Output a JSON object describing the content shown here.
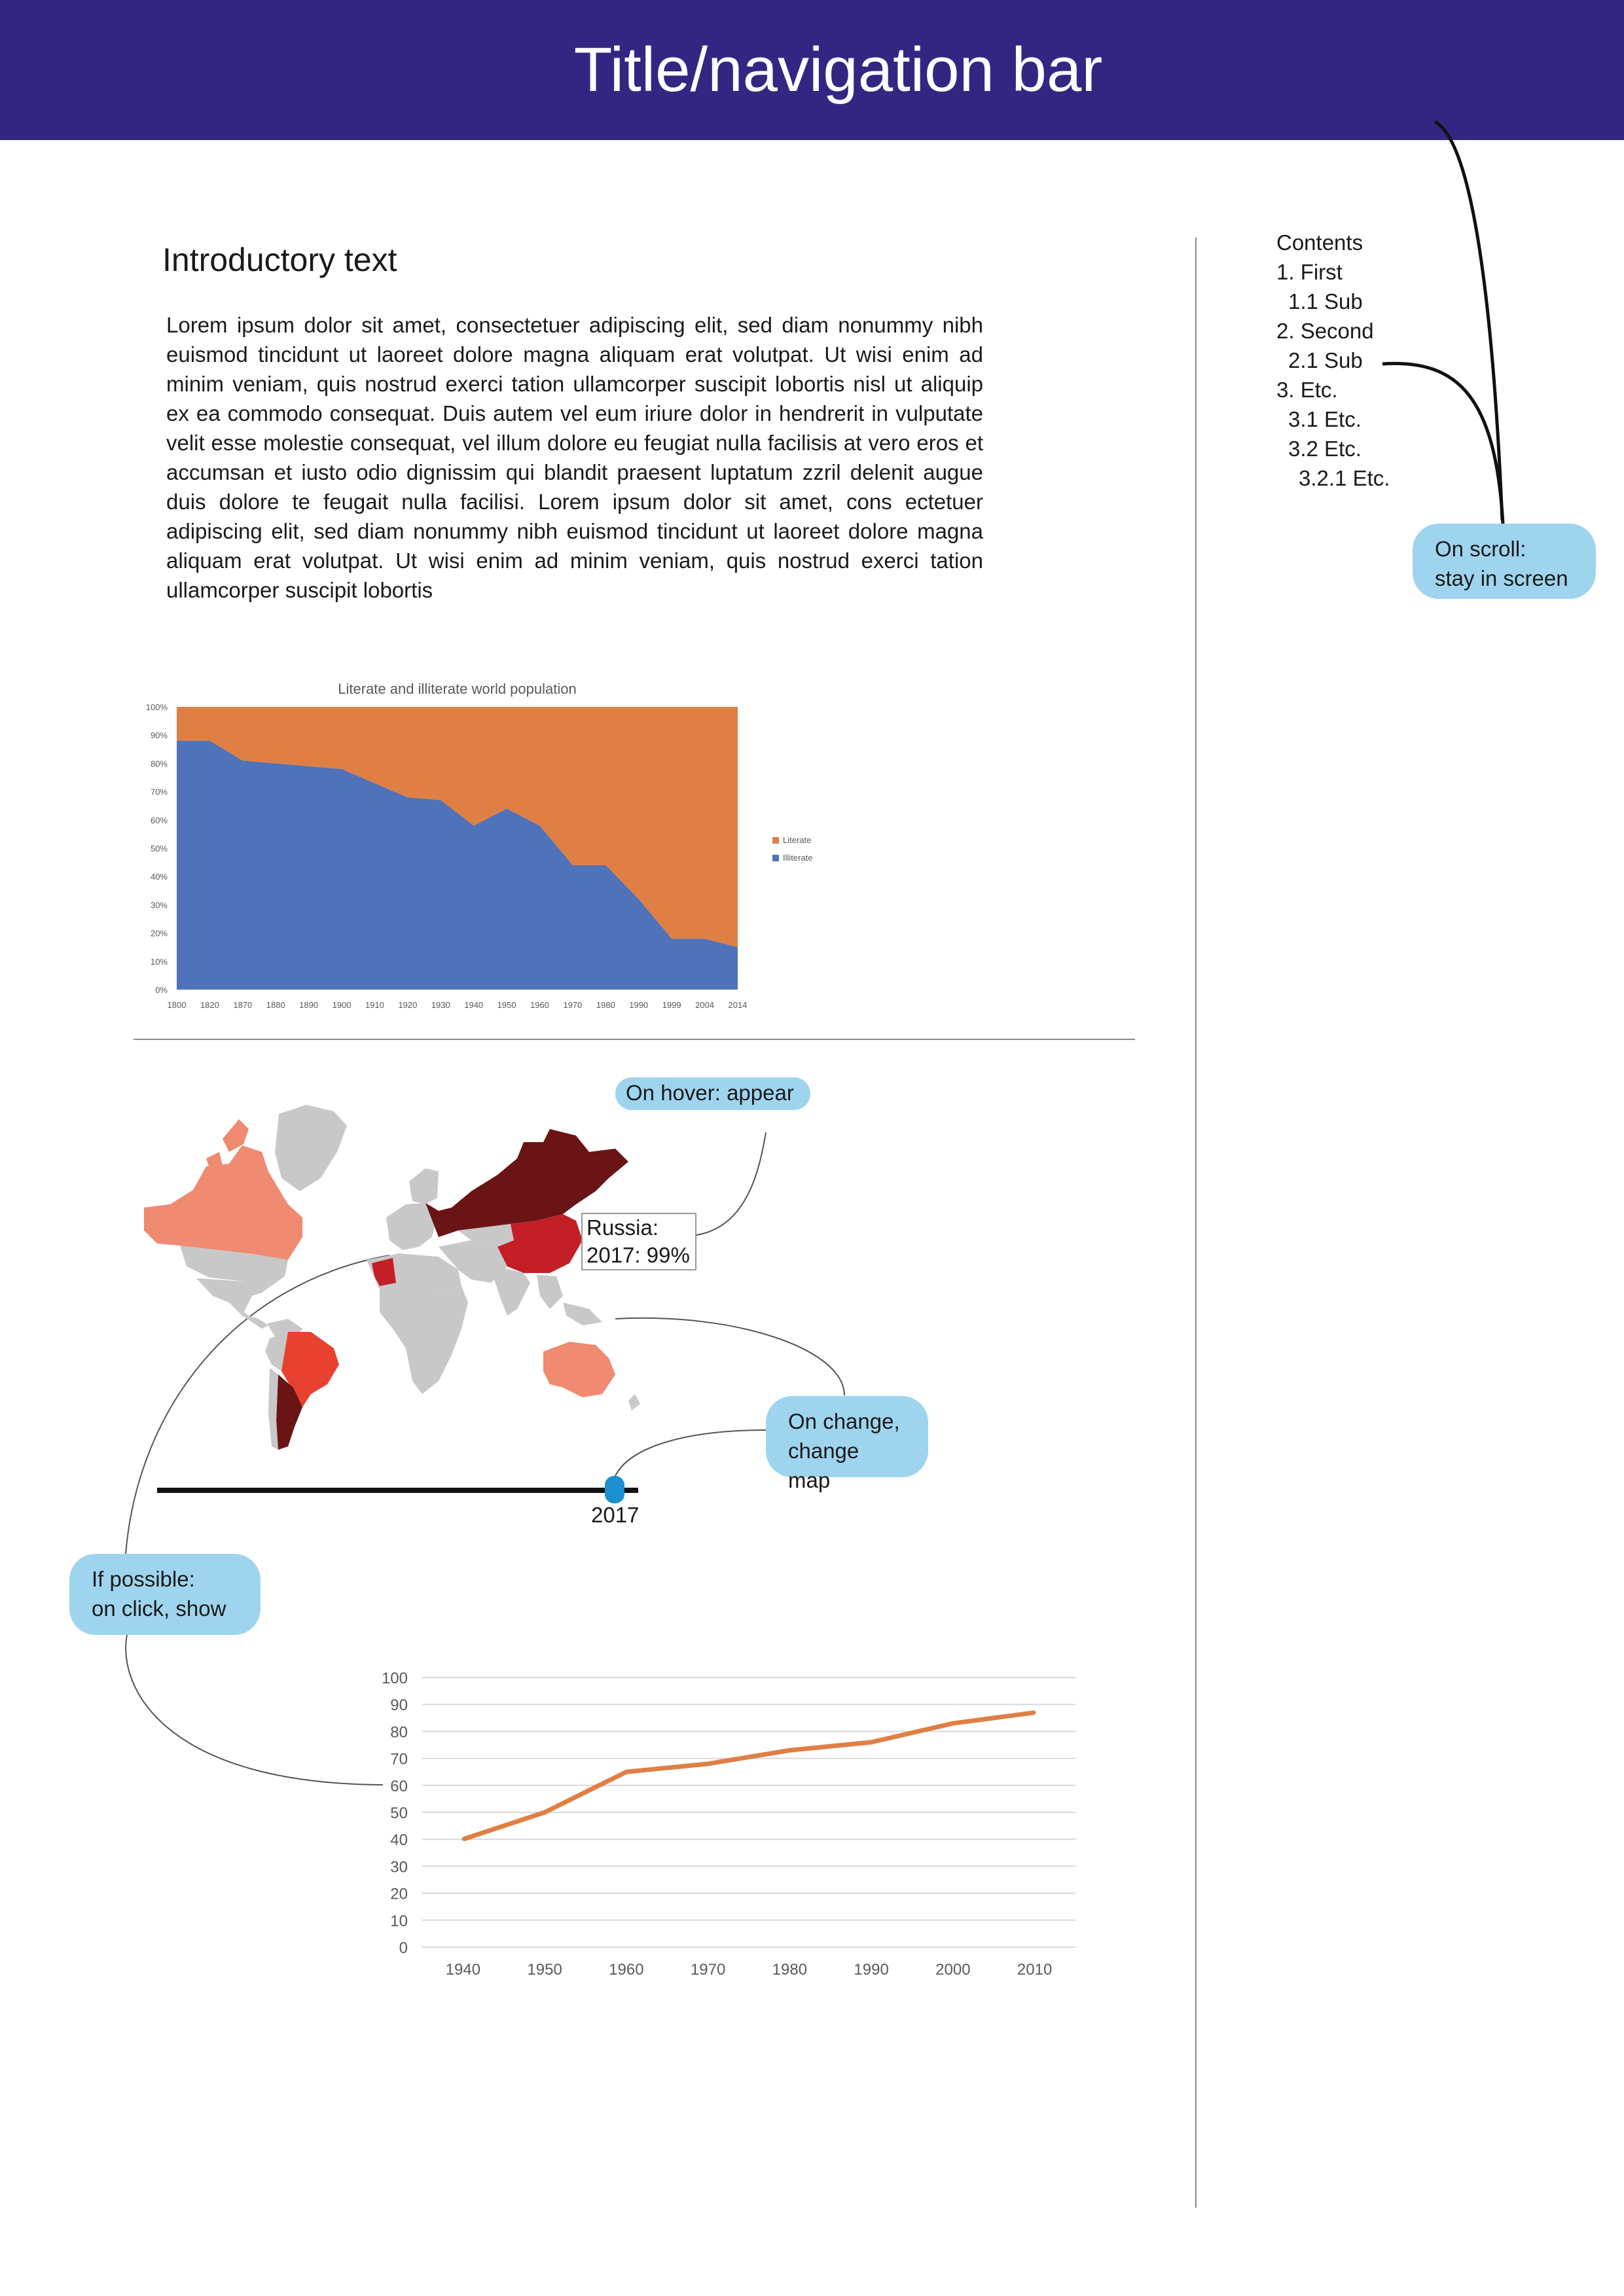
{
  "navbar": {
    "title": "Title/navigation bar"
  },
  "intro": {
    "heading": "Introductory text",
    "body": "Lorem ipsum dolor sit amet, consectetuer adipiscing elit, sed diam nonummy nibh euismod tincidunt ut laoreet dolore magna aliquam erat volutpat. Ut wisi enim ad minim veniam, quis nostrud exerci tation ullamcorper suscipit lobortis nisl ut aliquip ex ea commodo consequat. Duis autem vel eum iriure dolor in hendrerit in vulputate velit esse molestie consequat, vel illum dolore eu feugiat nulla facilisis at vero eros et accumsan et iusto odio dignissim qui blandit praesent luptatum zzril delenit augue duis dolore te feugait nulla facilisi. Lorem ipsum dolor sit amet, cons ectetuer adipiscing elit, sed diam nonummy nibh euismod tincidunt ut laoreet dolore magna aliquam erat volutpat. Ut wisi enim ad minim veniam, quis nostrud exerci tation ullamcorper suscipit lobortis"
  },
  "toc": {
    "heading": "Contents",
    "items": [
      {
        "label": "1. First",
        "level": 1
      },
      {
        "label": "1.1 Sub",
        "level": 2
      },
      {
        "label": "2. Second",
        "level": 1
      },
      {
        "label": "2.1 Sub",
        "level": 2
      },
      {
        "label": "3. Etc.",
        "level": 1
      },
      {
        "label": "3.1 Etc.",
        "level": 2
      },
      {
        "label": "3.2 Etc.",
        "level": 2
      },
      {
        "label": "3.2.1 Etc.",
        "level": 3
      }
    ]
  },
  "callouts": {
    "scroll": [
      "On scroll:",
      "stay in screen"
    ],
    "hover": "On hover: appear",
    "change": [
      "On change,",
      "change map"
    ],
    "click": [
      "If possible:",
      "on click, show"
    ]
  },
  "map": {
    "tooltip": {
      "country": "Russia:",
      "value": "2017: 99%"
    },
    "slider": {
      "value": "2017"
    },
    "colors": {
      "high": "#6a1416",
      "mid": "#c41e26",
      "medium": "#e8412f",
      "low": "#f08a71",
      "none": "#c8c8c8"
    }
  },
  "chart_data": [
    {
      "type": "area",
      "title": "Literate and illiterate world population",
      "x": [
        "1800",
        "1820",
        "1870",
        "1880",
        "1890",
        "1900",
        "1910",
        "1920",
        "1930",
        "1940",
        "1950",
        "1960",
        "1970",
        "1980",
        "1990",
        "1999",
        "2004",
        "2014"
      ],
      "ytick_labels": [
        "100%",
        "90%",
        "80%",
        "70%",
        "60%",
        "50%",
        "40%",
        "30%",
        "20%",
        "10%",
        "0%"
      ],
      "ylim": [
        0,
        100
      ],
      "stacked_to": 100,
      "series": [
        {
          "name": "Literate",
          "color": "#e07f44",
          "values": [
            12,
            12,
            19,
            20,
            21,
            22,
            27,
            32,
            33,
            42,
            36,
            42,
            56,
            56,
            68,
            82,
            82,
            85
          ]
        },
        {
          "name": "Illiterate",
          "color": "#4f72b8",
          "values": [
            88,
            88,
            81,
            80,
            79,
            78,
            73,
            68,
            67,
            58,
            64,
            58,
            44,
            44,
            32,
            18,
            18,
            15
          ]
        }
      ],
      "legend": "right"
    },
    {
      "type": "line",
      "x": [
        "1940",
        "1950",
        "1960",
        "1970",
        "1980",
        "1990",
        "2000",
        "2010"
      ],
      "ytick_labels": [
        "100",
        "90",
        "80",
        "70",
        "60",
        "50",
        "40",
        "30",
        "20",
        "10",
        "0"
      ],
      "ylim": [
        0,
        100
      ],
      "series": [
        {
          "color": "#e07f44",
          "values": [
            40,
            50,
            65,
            68,
            73,
            76,
            83,
            87
          ]
        }
      ],
      "grid": true
    }
  ]
}
